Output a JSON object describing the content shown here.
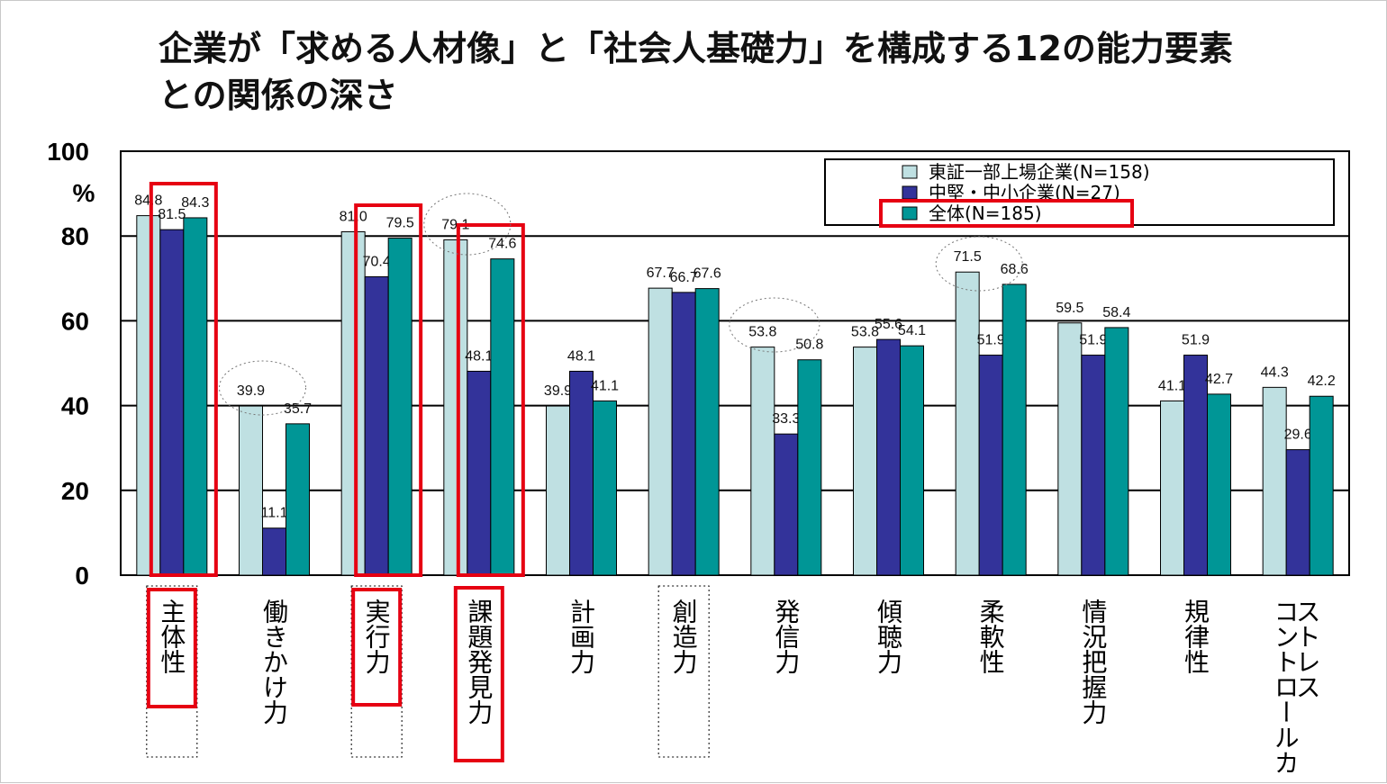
{
  "chart_data": {
    "type": "bar",
    "title_lines": [
      "企業が「求める人材像」と「社会人基礎力」を構成する12の能力要素",
      "との関係の深さ"
    ],
    "y_unit": "%",
    "ylim": [
      0,
      100
    ],
    "yticks": [
      "100",
      "80",
      "60",
      "40",
      "20",
      "0"
    ],
    "grid": true,
    "legend_position": "top-right",
    "categories": [
      "主体性",
      "働きかけ力",
      "実行力",
      "課題発見力",
      "計画力",
      "創造力",
      "発信力",
      "傾聴力",
      "柔軟性",
      "情況把握力",
      "規律性",
      "ストレスコントロール力"
    ],
    "category_display": [
      [
        "主体性"
      ],
      [
        "働きかけ力"
      ],
      [
        "実行力"
      ],
      [
        "課題発見力"
      ],
      [
        "計画力"
      ],
      [
        "創造力"
      ],
      [
        "発信力"
      ],
      [
        "傾聴力"
      ],
      [
        "柔軟性"
      ],
      [
        "情況把握力"
      ],
      [
        "規律性"
      ],
      [
        "ストレス",
        "コントロールカ"
      ]
    ],
    "series": [
      {
        "name": "東証一部上場企業(N=158)",
        "color": "#bfe0e2",
        "values": [
          84.8,
          39.9,
          81.0,
          79.1,
          39.9,
          67.7,
          53.8,
          53.8,
          71.5,
          59.5,
          41.1,
          44.3
        ],
        "labels": [
          "84.8",
          "39.9",
          "81.0",
          "79.1",
          "39.9",
          "67.7",
          "53.8",
          "53.8",
          "71.5",
          "59.5",
          "41.1",
          "44.3"
        ]
      },
      {
        "name": "中堅・中小企業(N=27)",
        "color": "#33339a",
        "values": [
          81.5,
          11.1,
          70.4,
          48.1,
          48.1,
          66.7,
          33.3,
          55.6,
          51.9,
          51.9,
          51.9,
          29.6
        ],
        "labels": [
          "81.5",
          "11.1",
          "70.4",
          "48.1",
          "48.1",
          "66.7",
          "33.3",
          "55.6",
          "51.9",
          "51.9",
          "51.9",
          "29.6"
        ]
      },
      {
        "name": "全体(N=185)",
        "color": "#009696",
        "values": [
          84.3,
          35.7,
          79.5,
          74.6,
          41.1,
          67.6,
          50.8,
          54.1,
          68.6,
          58.4,
          42.7,
          42.2
        ],
        "labels": [
          "84.3",
          "35.7",
          "79.5",
          "74.6",
          "41.1",
          "67.6",
          "50.8",
          "54.1",
          "68.6",
          "58.4",
          "42.7",
          "42.2"
        ]
      }
    ]
  },
  "colors": {
    "highlight_red": "#e60012",
    "grid": "#000000",
    "dotted": "#777777"
  }
}
